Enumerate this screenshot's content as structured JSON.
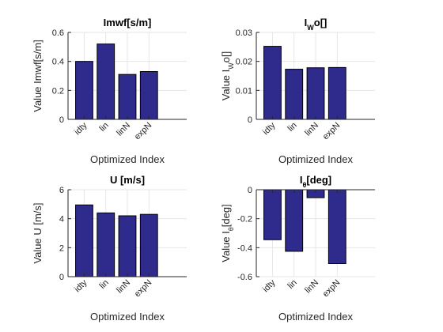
{
  "chart_data": [
    {
      "type": "bar",
      "title_parts": [
        {
          "t": "Imwf[s/m]",
          "s": ""
        }
      ],
      "xlabel": "Optimized Index",
      "ylabel_parts": [
        {
          "t": "Value Imwf[s/m]",
          "s": ""
        }
      ],
      "categories": [
        "idty",
        "lin",
        "linN",
        "expN"
      ],
      "values": [
        0.4,
        0.52,
        0.31,
        0.33
      ],
      "ylim": [
        0,
        0.6
      ],
      "yticks": [
        "0",
        "0.2",
        "0.4",
        "0.6"
      ],
      "xlim": [
        0.25,
        5.75
      ],
      "grid": true
    },
    {
      "type": "bar",
      "title_parts": [
        {
          "t": "I",
          "s": ""
        },
        {
          "t": "W",
          "s": "sub"
        },
        {
          "t": "o[]",
          "s": ""
        }
      ],
      "xlabel": "Optimized Index",
      "ylabel_parts": [
        {
          "t": "Value I",
          "s": ""
        },
        {
          "t": "W",
          "s": "sub"
        },
        {
          "t": "o[]",
          "s": ""
        }
      ],
      "categories": [
        "idty",
        "lin",
        "linN",
        "expN"
      ],
      "values": [
        0.0252,
        0.0173,
        0.0178,
        0.0179
      ],
      "ylim": [
        0,
        0.03
      ],
      "yticks": [
        "0",
        "0.01",
        "0.02",
        "0.03"
      ],
      "xlim": [
        0.25,
        5.75
      ],
      "grid": true
    },
    {
      "type": "bar",
      "title_parts": [
        {
          "t": "U [m/s]",
          "s": ""
        }
      ],
      "xlabel": "Optimized Index",
      "ylabel_parts": [
        {
          "t": "Value U [m/s]",
          "s": ""
        }
      ],
      "categories": [
        "idty",
        "lin",
        "linN",
        "expN"
      ],
      "values": [
        4.95,
        4.4,
        4.2,
        4.3
      ],
      "ylim": [
        0,
        6
      ],
      "yticks": [
        "0",
        "2",
        "4",
        "6"
      ],
      "xlim": [
        0.25,
        5.75
      ],
      "grid": true
    },
    {
      "type": "bar",
      "title_parts": [
        {
          "t": "I",
          "s": ""
        },
        {
          "t": "θ",
          "s": "sub"
        },
        {
          "t": "[deg]",
          "s": ""
        }
      ],
      "xlabel": "Optimized Index",
      "ylabel_parts": [
        {
          "t": "Value I",
          "s": ""
        },
        {
          "t": "θ",
          "s": "sub"
        },
        {
          "t": "[deg]",
          "s": ""
        }
      ],
      "categories": [
        "idty",
        "lin",
        "linN",
        "expN"
      ],
      "values": [
        -0.345,
        -0.425,
        -0.055,
        -0.51
      ],
      "ylim": [
        -0.6,
        0
      ],
      "yticks": [
        "-0.6",
        "-0.4",
        "-0.2",
        "0"
      ],
      "xlim": [
        0.25,
        5.75
      ],
      "grid": true
    }
  ],
  "style": {
    "bar_color": "#2e2b8c",
    "axis_color": "#262626",
    "grid_color": "#e6e6e6"
  }
}
